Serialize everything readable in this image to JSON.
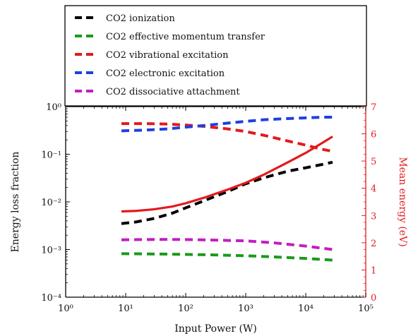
{
  "chart_data": {
    "type": "line",
    "xlabel": "Input Power (W)",
    "ylabel": "Energy loss fraction",
    "y2label": "Mean energy (eV)",
    "xscale": "log",
    "yscale": "log",
    "xlim": [
      1,
      100000
    ],
    "ylim": [
      0.0001,
      1
    ],
    "y2lim": [
      0,
      7
    ],
    "xticks": [
      {
        "value": 1,
        "label": "10⁰"
      },
      {
        "value": 10,
        "label": "10¹"
      },
      {
        "value": 100,
        "label": "10²"
      },
      {
        "value": 1000,
        "label": "10³"
      },
      {
        "value": 10000,
        "label": "10⁴"
      },
      {
        "value": 100000,
        "label": "10⁵"
      }
    ],
    "yticks": [
      {
        "value": 1,
        "label": "10⁰"
      },
      {
        "value": 0.1,
        "label": "10⁻¹"
      },
      {
        "value": 0.01,
        "label": "10⁻²"
      },
      {
        "value": 0.001,
        "label": "10⁻³"
      },
      {
        "value": 0.0001,
        "label": "10⁻⁴"
      }
    ],
    "y2ticks": [
      "0",
      "1",
      "2",
      "3",
      "4",
      "5",
      "6",
      "7"
    ],
    "legend_position": "top",
    "series": [
      {
        "name": "CO2 ionization",
        "color": "#000000",
        "style": "dashed",
        "axis": "left",
        "x": [
          8.5,
          15,
          30,
          60,
          100,
          200,
          500,
          1000,
          2000,
          5000,
          10000,
          20000,
          28000
        ],
        "y": [
          0.0035,
          0.0038,
          0.0045,
          0.0058,
          0.0075,
          0.0105,
          0.0165,
          0.024,
          0.032,
          0.044,
          0.052,
          0.062,
          0.068
        ]
      },
      {
        "name": "CO2 effective momentum transfer",
        "color": "#1a9a1a",
        "style": "dashed",
        "axis": "left",
        "x": [
          8.5,
          20,
          50,
          100,
          300,
          1000,
          3000,
          10000,
          28000
        ],
        "y": [
          0.00082,
          0.00081,
          0.0008,
          0.00079,
          0.00077,
          0.00074,
          0.0007,
          0.00065,
          0.0006
        ]
      },
      {
        "name": "CO2 vibrational excitation",
        "color": "#e31a1c",
        "style": "dashed",
        "axis": "left",
        "x": [
          8.5,
          20,
          50,
          100,
          200,
          500,
          1000,
          2000,
          5000,
          10000,
          20000,
          28000
        ],
        "y": [
          0.44,
          0.44,
          0.43,
          0.41,
          0.385,
          0.34,
          0.3,
          0.25,
          0.19,
          0.155,
          0.125,
          0.115
        ]
      },
      {
        "name": "CO2 electronic excitation",
        "color": "#1f3fe0",
        "style": "dashed",
        "axis": "left",
        "x": [
          8.5,
          20,
          50,
          100,
          200,
          500,
          1000,
          2000,
          5000,
          10000,
          20000,
          28000
        ],
        "y": [
          0.31,
          0.32,
          0.34,
          0.37,
          0.4,
          0.45,
          0.49,
          0.53,
          0.56,
          0.58,
          0.6,
          0.6
        ]
      },
      {
        "name": "CO2 dissociative attachment",
        "color": "#c21ec2",
        "style": "dashed",
        "axis": "left",
        "x": [
          8.5,
          20,
          50,
          100,
          300,
          1000,
          3000,
          10000,
          28000
        ],
        "y": [
          0.0016,
          0.00162,
          0.00163,
          0.00162,
          0.00158,
          0.00152,
          0.00138,
          0.00118,
          0.001
        ]
      },
      {
        "name": "Mean energy",
        "color": "#e31a1c",
        "style": "solid",
        "axis": "right",
        "x": [
          8.5,
          15,
          30,
          60,
          100,
          200,
          500,
          1000,
          2000,
          5000,
          10000,
          20000,
          28000
        ],
        "y": [
          3.15,
          3.17,
          3.23,
          3.33,
          3.45,
          3.65,
          3.95,
          4.2,
          4.5,
          4.95,
          5.3,
          5.7,
          5.9
        ]
      }
    ]
  }
}
